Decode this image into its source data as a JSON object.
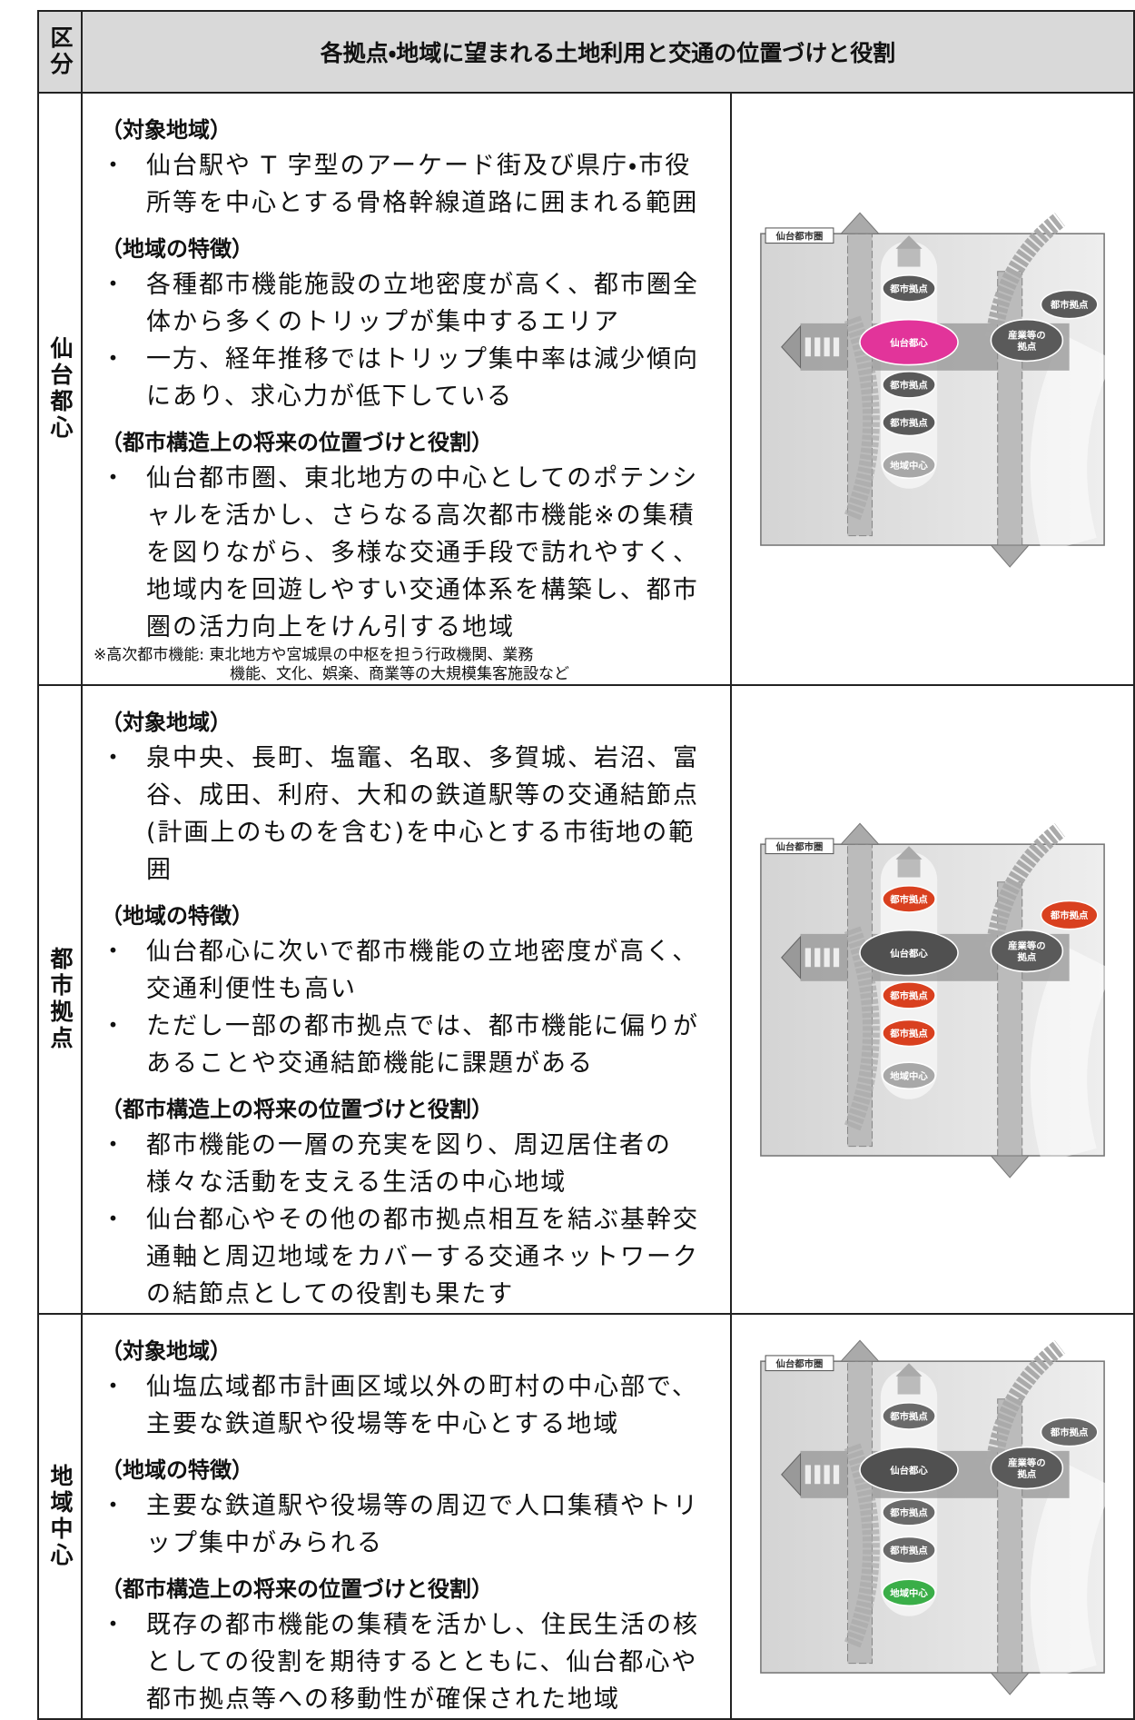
{
  "table": {
    "header": [
      "区分",
      "各拠点・地域に望まれる土地利用と交通の位置づけと役割"
    ],
    "rows": [
      {
        "category": "仙台都心",
        "sections": [
          {
            "heading": "（対象地域）",
            "items": [
              "仙台駅や T 字型のアーケード街及び県庁・市役所等を中心とする骨格幹線道路に囲まれる範囲"
            ]
          },
          {
            "heading": "（地域の特徴）",
            "items": [
              "各種都市機能施設の立地密度が高く、都市圏全体から多くのトリップが集中するエリア",
              "一方、経年推移ではトリップ集中率は減少傾向にあり、求心力が低下している"
            ]
          },
          {
            "heading": "（都市構造上の将来の位置づけと役割）",
            "items": [
              "仙台都市圏、東北地方の中心としてのポテンシャルを活かし、さらなる高次都市機能※の集積を図りながら、多様な交通手段で訪れやすく、地域内を回遊しやすい交通体系を構築し、都市圏の活力向上をけん引する地域"
            ]
          }
        ],
        "note": [
          "※高次都市機能: 東北地方や宮城県の中枢を担う行政機関、業務",
          "機能、文化、娯楽、商業等の大規模集客施設など"
        ],
        "diagram": {
          "frame": "仙台都市圏",
          "nodes": [
            {
              "label": [
                "都市拠点"
              ],
              "color": "#5a5a5a"
            },
            {
              "label": [
                "仙台都心"
              ],
              "color": "#e2349a"
            },
            {
              "label": [
                "都市拠点"
              ],
              "color": "#5a5a5a"
            },
            {
              "label": [
                "都市拠点"
              ],
              "color": "#5a5a5a"
            },
            {
              "label": [
                "地域中心"
              ],
              "color": "#a8a8a8"
            },
            {
              "label": [
                "都市拠点"
              ],
              "color": "#5a5a5a"
            },
            {
              "label": [
                "産業等の",
                "拠点"
              ],
              "color": "#5a5a5a"
            }
          ]
        }
      },
      {
        "category": "都市拠点",
        "sections": [
          {
            "heading": "（対象地域）",
            "items": [
              "泉中央、長町、塩竈、名取、多賀城、岩沼、富谷、成田、利府、大和の鉄道駅等の交通結節点(計画上のものを含む)を中心とする市街地の範囲"
            ]
          },
          {
            "heading": "（地域の特徴）",
            "items": [
              "仙台都心に次いで都市機能の立地密度が高く、交通利便性も高い",
              "ただし一部の都市拠点では、都市機能に偏りがあることや交通結節機能に課題がある"
            ]
          },
          {
            "heading": "（都市構造上の将来の位置づけと役割）",
            "items": [
              "都市機能の一層の充実を図り、周辺居住者の様々な活動を支える生活の中心地域",
              "仙台都心やその他の都市拠点相互を結ぶ基幹交通軸と周辺地域をカバーする交通ネットワークの結節点としての役割も果たす"
            ]
          }
        ],
        "diagram": {
          "frame": "仙台都市圏",
          "nodes": [
            {
              "label": [
                "都市拠点"
              ],
              "color": "#d9401f"
            },
            {
              "label": [
                "仙台都心"
              ],
              "color": "#505050"
            },
            {
              "label": [
                "都市拠点"
              ],
              "color": "#d9401f"
            },
            {
              "label": [
                "都市拠点"
              ],
              "color": "#d9401f"
            },
            {
              "label": [
                "地域中心"
              ],
              "color": "#a8a8a8"
            },
            {
              "label": [
                "都市拠点"
              ],
              "color": "#d9401f"
            },
            {
              "label": [
                "産業等の",
                "拠点"
              ],
              "color": "#5a5a5a"
            }
          ]
        }
      },
      {
        "category": "地域中心",
        "sections": [
          {
            "heading": "（対象地域）",
            "items": [
              "仙塩広域都市計画区域以外の町村の中心部で、主要な鉄道駅や役場等を中心とする地域"
            ]
          },
          {
            "heading": "（地域の特徴）",
            "items": [
              "主要な鉄道駅や役場等の周辺で人口集積やトリップ集中がみられる"
            ]
          },
          {
            "heading": "（都市構造上の将来の位置づけと役割）",
            "items": [
              "既存の都市機能の集積を活かし、住民生活の核としての役割を期待するとともに、仙台都心や都市拠点等への移動性が確保された地域"
            ]
          }
        ],
        "diagram": {
          "frame": "仙台都市圏",
          "nodes": [
            {
              "label": [
                "都市拠点"
              ],
              "color": "#6a6a6a"
            },
            {
              "label": [
                "仙台都心"
              ],
              "color": "#505050"
            },
            {
              "label": [
                "都市拠点"
              ],
              "color": "#6a6a6a"
            },
            {
              "label": [
                "都市拠点"
              ],
              "color": "#6a6a6a"
            },
            {
              "label": [
                "地域中心"
              ],
              "color": "#3aae48"
            },
            {
              "label": [
                "都市拠点"
              ],
              "color": "#6a6a6a"
            },
            {
              "label": [
                "産業等の",
                "拠点"
              ],
              "color": "#5a5a5a"
            }
          ]
        }
      }
    ]
  }
}
